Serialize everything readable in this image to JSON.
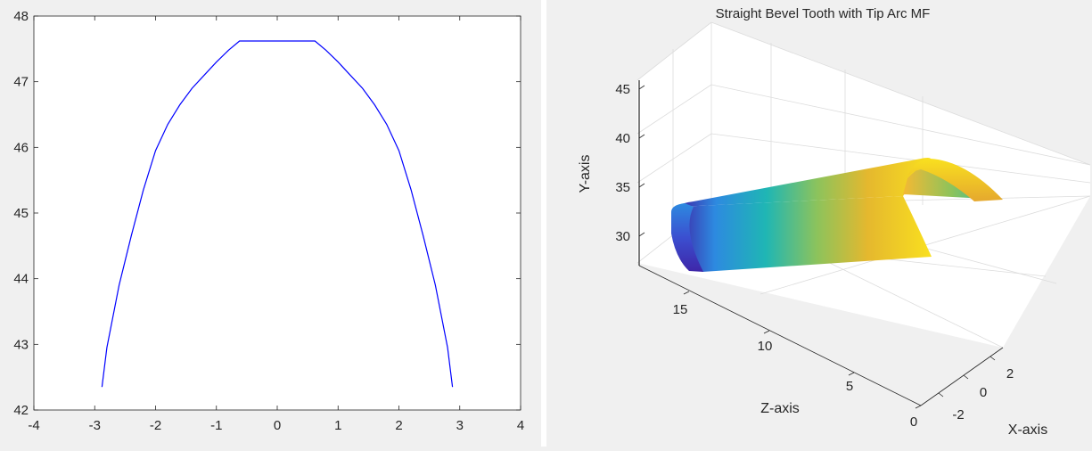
{
  "chart_data": [
    {
      "type": "line",
      "title": "",
      "xlabel": "",
      "ylabel": "",
      "xlim": [
        -4,
        4
      ],
      "ylim": [
        42,
        48
      ],
      "xticks": [
        -4,
        -3,
        -2,
        -1,
        0,
        1,
        2,
        3,
        4
      ],
      "yticks": [
        42,
        43,
        44,
        45,
        46,
        47,
        48
      ],
      "xtick_labels": [
        "-4",
        "-3",
        "-2",
        "-1",
        "0",
        "1",
        "2",
        "3",
        "4"
      ],
      "ytick_labels": [
        "42",
        "43",
        "44",
        "45",
        "46",
        "47",
        "48"
      ],
      "grid": false,
      "line_color": "#0000ff",
      "series": [
        {
          "x": [
            -2.88,
            -2.8,
            -2.6,
            -2.4,
            -2.2,
            -2.0,
            -1.8,
            -1.6,
            -1.4,
            -1.2,
            -1.0,
            -0.8,
            -0.62,
            0.0,
            0.62,
            0.8,
            1.0,
            1.2,
            1.4,
            1.6,
            1.8,
            2.0,
            2.2,
            2.4,
            2.6,
            2.8,
            2.88
          ],
          "y": [
            42.35,
            42.95,
            43.9,
            44.65,
            45.35,
            45.95,
            46.35,
            46.65,
            46.9,
            47.1,
            47.3,
            47.48,
            47.62,
            47.62,
            47.62,
            47.48,
            47.3,
            47.1,
            46.9,
            46.65,
            46.35,
            45.95,
            45.35,
            44.65,
            43.9,
            42.95,
            42.35
          ]
        }
      ]
    },
    {
      "type": "surface",
      "title": "Straight Bevel Tooth with Tip Arc MF",
      "xlabel": "X-axis",
      "ylabel": "Y-axis",
      "zlabel": "Z-axis",
      "yticks": [
        "30",
        "35",
        "40",
        "45"
      ],
      "zticks": [
        "0",
        "5",
        "10",
        "15"
      ],
      "xticks": [
        "-2",
        "0",
        "2"
      ],
      "colormap": "parula",
      "colormap_stops": [
        "#3e26a8",
        "#2d8ae0",
        "#1fb6b4",
        "#8cc35c",
        "#e5b82e",
        "#f9e01f"
      ]
    }
  ]
}
